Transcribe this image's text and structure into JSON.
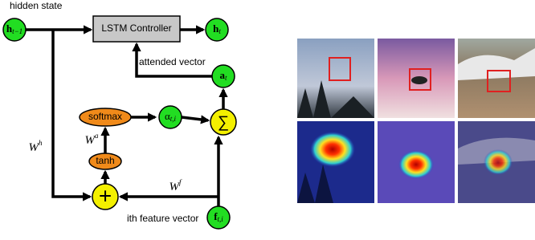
{
  "labels": {
    "hidden_state": "hidden state",
    "lstm": "LSTM Controller",
    "attended": "attended vector",
    "softmax": "softmax",
    "tanh": "tanh",
    "feature": "ith feature vector",
    "w_a": {
      "base": "W",
      "sup": "a"
    },
    "w_h": {
      "base": "W",
      "sup": "h"
    },
    "w_f": {
      "base": "W",
      "sup": "f"
    }
  },
  "nodes": {
    "h_prev": {
      "base": "h",
      "sub": "t−1"
    },
    "h_t": {
      "base": "h",
      "sub": "t"
    },
    "a_t": {
      "base": "a",
      "sub": "t"
    },
    "alpha": {
      "base": "α",
      "sub": "t,i"
    },
    "f": {
      "base": "f",
      "sub": "t,i"
    },
    "sum": "∑",
    "plus": "+"
  }
}
